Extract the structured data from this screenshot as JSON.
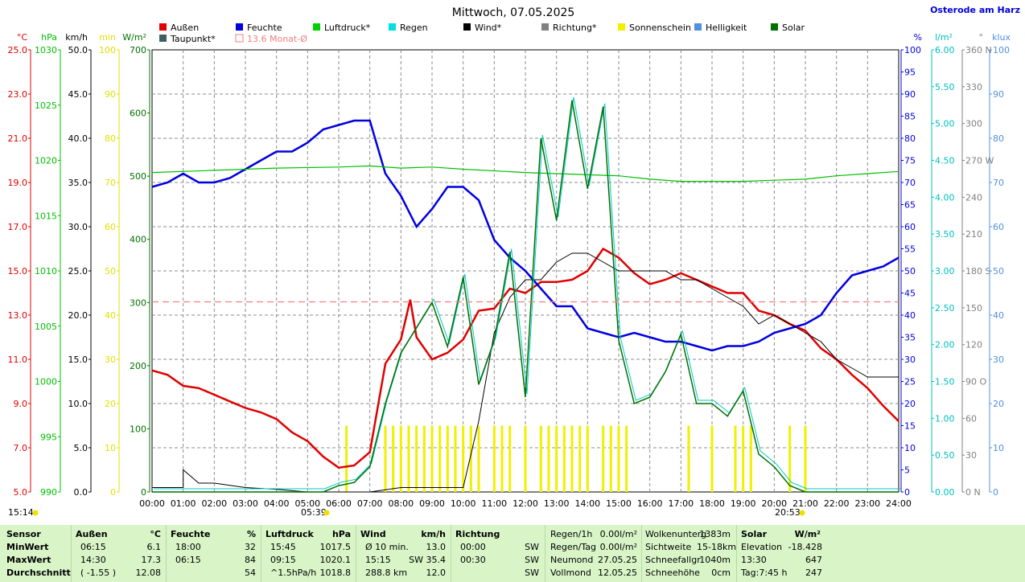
{
  "title": "Mittwoch, 07.05.2025",
  "station": "Osterode am Harz",
  "legend": [
    {
      "label": "Außen",
      "color": "#e00000"
    },
    {
      "label": "Feuchte",
      "color": "#0000e0"
    },
    {
      "label": "Luftdruck*",
      "color": "#00d000"
    },
    {
      "label": "Regen",
      "color": "#00e0e0"
    },
    {
      "label": "Wind*",
      "color": "#000000"
    },
    {
      "label": "Richtung*",
      "color": "#808080"
    },
    {
      "label": "Sonnenschein",
      "color": "#f0f000"
    },
    {
      "label": "Helligkeit",
      "color": "#5090e0"
    },
    {
      "label": "Solar",
      "color": "#007000"
    },
    {
      "label": "Taupunkt*",
      "color": "#406060"
    },
    {
      "label": "13.6 Monat-Ø",
      "color": "#f08080"
    }
  ],
  "axes_left": [
    {
      "unit": "°C",
      "color": "#e00000",
      "ticks": [
        "25.0",
        "23.0",
        "21.0",
        "19.0",
        "17.0",
        "15.0",
        "13.0",
        "11.0",
        "9.0",
        "7.0",
        "5.0"
      ]
    },
    {
      "unit": "hPa",
      "color": "#00c000",
      "ticks": [
        "1030",
        "1025",
        "1020",
        "1015",
        "1010",
        "1005",
        "1000",
        "995",
        "990"
      ]
    },
    {
      "unit": "km/h",
      "color": "#000000",
      "ticks": [
        "50.0",
        "45.0",
        "40.0",
        "35.0",
        "30.0",
        "25.0",
        "20.0",
        "15.0",
        "10.0",
        "5.0",
        "0.0"
      ]
    },
    {
      "unit": "min",
      "color": "#e0e000",
      "ticks": [
        "100",
        "90",
        "80",
        "70",
        "60",
        "50",
        "40",
        "30",
        "20",
        "10",
        "0"
      ]
    },
    {
      "unit": "W/m²",
      "color": "#007000",
      "ticks": [
        "700",
        "600",
        "500",
        "400",
        "300",
        "200",
        "100",
        "0"
      ]
    }
  ],
  "axes_right": [
    {
      "unit": "%",
      "color": "#0000e0",
      "ticks": [
        "100",
        "95",
        "90",
        "85",
        "80",
        "75",
        "70",
        "65",
        "60",
        "55",
        "50",
        "45",
        "40",
        "35",
        "30",
        "25",
        "20",
        "15",
        "10",
        "5",
        "0"
      ]
    },
    {
      "unit": "l/m²",
      "color": "#00c0c0",
      "ticks": [
        "6.00",
        "5.50",
        "5.00",
        "4.50",
        "4.00",
        "3.50",
        "3.00",
        "2.50",
        "2.00",
        "1.50",
        "1.00",
        "0.50",
        "0.00"
      ]
    },
    {
      "unit": "°",
      "color": "#808080",
      "ticks": [
        "360 N",
        "330",
        "300",
        "270 W",
        "240",
        "210",
        "180 S",
        "150",
        "120",
        "90 O",
        "60",
        "30",
        "0 N"
      ]
    },
    {
      "unit": "klux",
      "color": "#5090e0",
      "ticks": [
        "100",
        "90",
        "80",
        "70",
        "60",
        "50",
        "40",
        "30",
        "20",
        "10",
        "0"
      ]
    }
  ],
  "x_ticks": [
    "00:00",
    "01:00",
    "02:00",
    "03:00",
    "04:00",
    "05:00",
    "06:00",
    "07:00",
    "08:00",
    "09:00",
    "10:00",
    "11:00",
    "12:00",
    "13:00",
    "14:00",
    "15:00",
    "16:00",
    "17:00",
    "18:00",
    "19:00",
    "20:00",
    "21:00",
    "22:00",
    "23:00",
    "24:00"
  ],
  "time_marks": {
    "now": "15:14",
    "sunrise": "05:39",
    "sunset": "20:53"
  },
  "chart_data": {
    "type": "line",
    "title": "Mittwoch, 07.05.2025",
    "x_unit": "hour of day",
    "xlim": [
      0,
      24
    ],
    "series": [
      {
        "name": "Außen",
        "unit": "°C",
        "ylim": [
          5,
          25
        ],
        "points": [
          [
            0,
            10.5
          ],
          [
            0.5,
            10.3
          ],
          [
            1,
            9.8
          ],
          [
            1.5,
            9.7
          ],
          [
            2,
            9.4
          ],
          [
            2.5,
            9.1
          ],
          [
            3,
            8.8
          ],
          [
            3.5,
            8.6
          ],
          [
            4,
            8.3
          ],
          [
            4.5,
            7.7
          ],
          [
            5,
            7.3
          ],
          [
            5.5,
            6.6
          ],
          [
            6,
            6.1
          ],
          [
            6.5,
            6.2
          ],
          [
            7,
            6.8
          ],
          [
            7.5,
            10.8
          ],
          [
            8,
            11.9
          ],
          [
            8.3,
            13.7
          ],
          [
            8.5,
            12.0
          ],
          [
            9,
            11.0
          ],
          [
            9.5,
            11.3
          ],
          [
            10,
            11.9
          ],
          [
            10.5,
            13.2
          ],
          [
            11,
            13.3
          ],
          [
            11.5,
            14.2
          ],
          [
            12,
            14.0
          ],
          [
            12.5,
            14.5
          ],
          [
            13,
            14.5
          ],
          [
            13.5,
            14.6
          ],
          [
            14,
            15.0
          ],
          [
            14.5,
            16.0
          ],
          [
            15,
            15.6
          ],
          [
            15.5,
            14.9
          ],
          [
            16,
            14.4
          ],
          [
            16.5,
            14.6
          ],
          [
            17,
            14.9
          ],
          [
            17.5,
            14.6
          ],
          [
            18,
            14.3
          ],
          [
            18.5,
            14.0
          ],
          [
            19,
            14.0
          ],
          [
            19.5,
            13.2
          ],
          [
            20,
            13.0
          ],
          [
            20.5,
            12.6
          ],
          [
            21,
            12.3
          ],
          [
            21.5,
            11.5
          ],
          [
            22,
            11.0
          ],
          [
            22.5,
            10.3
          ],
          [
            23,
            9.7
          ],
          [
            23.5,
            8.9
          ],
          [
            24,
            8.2
          ]
        ]
      },
      {
        "name": "Feuchte",
        "unit": "%",
        "ylim": [
          0,
          100
        ],
        "points": [
          [
            0,
            69
          ],
          [
            0.5,
            70
          ],
          [
            1,
            72
          ],
          [
            1.5,
            70
          ],
          [
            2,
            70
          ],
          [
            2.5,
            71
          ],
          [
            3,
            73
          ],
          [
            3.5,
            75
          ],
          [
            4,
            77
          ],
          [
            4.5,
            77
          ],
          [
            5,
            79
          ],
          [
            5.5,
            82
          ],
          [
            6,
            83
          ],
          [
            6.5,
            84
          ],
          [
            7,
            84
          ],
          [
            7.5,
            72
          ],
          [
            8,
            67
          ],
          [
            8.5,
            60
          ],
          [
            9,
            64
          ],
          [
            9.5,
            69
          ],
          [
            10,
            69
          ],
          [
            10.5,
            66
          ],
          [
            11,
            57
          ],
          [
            11.5,
            53
          ],
          [
            12,
            50
          ],
          [
            12.5,
            46
          ],
          [
            13,
            42
          ],
          [
            13.5,
            42
          ],
          [
            14,
            37
          ],
          [
            14.5,
            36
          ],
          [
            15,
            35
          ],
          [
            15.5,
            36
          ],
          [
            16,
            35
          ],
          [
            16.5,
            34
          ],
          [
            17,
            34
          ],
          [
            17.5,
            33
          ],
          [
            18,
            32
          ],
          [
            18.5,
            33
          ],
          [
            19,
            33
          ],
          [
            19.5,
            34
          ],
          [
            20,
            36
          ],
          [
            20.5,
            37
          ],
          [
            21,
            38
          ],
          [
            21.5,
            40
          ],
          [
            22,
            45
          ],
          [
            22.5,
            49
          ],
          [
            23,
            50
          ],
          [
            23.5,
            51
          ],
          [
            24,
            53
          ]
        ]
      },
      {
        "name": "Luftdruck*",
        "unit": "hPa",
        "ylim": [
          990,
          1030
        ],
        "points": [
          [
            0,
            1018.9
          ],
          [
            2,
            1019.1
          ],
          [
            4,
            1019.3
          ],
          [
            6,
            1019.4
          ],
          [
            7,
            1019.5
          ],
          [
            8,
            1019.3
          ],
          [
            9,
            1019.4
          ],
          [
            10,
            1019.2
          ],
          [
            12,
            1018.9
          ],
          [
            14,
            1018.7
          ],
          [
            15,
            1018.6
          ],
          [
            16,
            1018.3
          ],
          [
            17,
            1018.1
          ],
          [
            19,
            1018.1
          ],
          [
            20,
            1018.2
          ],
          [
            21,
            1018.3
          ],
          [
            22,
            1018.6
          ],
          [
            23,
            1018.8
          ],
          [
            24,
            1019.0
          ]
        ]
      },
      {
        "name": "Wind*",
        "unit": "km/h",
        "ylim": [
          0,
          50
        ],
        "points": [
          [
            0,
            0.5
          ],
          [
            1,
            0.5
          ],
          [
            1,
            2.5
          ],
          [
            1.5,
            1.0
          ],
          [
            2,
            1.0
          ],
          [
            3,
            0.5
          ],
          [
            4,
            0.3
          ],
          [
            5,
            0
          ],
          [
            6,
            0
          ],
          [
            7,
            0
          ],
          [
            8,
            0.5
          ],
          [
            9,
            0.5
          ],
          [
            10,
            0.5
          ],
          [
            10.5,
            8
          ],
          [
            11,
            18
          ],
          [
            11.5,
            22
          ],
          [
            12,
            24
          ],
          [
            12.5,
            24
          ],
          [
            13,
            26
          ],
          [
            13.5,
            27
          ],
          [
            14,
            27
          ],
          [
            14.5,
            26
          ],
          [
            15,
            25
          ],
          [
            15.5,
            25
          ],
          [
            16,
            25
          ],
          [
            16.5,
            25
          ],
          [
            17,
            24
          ],
          [
            17.5,
            24
          ],
          [
            18,
            23
          ],
          [
            18.5,
            22
          ],
          [
            19,
            21
          ],
          [
            19.5,
            19
          ],
          [
            20,
            20
          ],
          [
            20.5,
            19
          ],
          [
            21,
            18
          ],
          [
            21.5,
            17
          ],
          [
            22,
            15
          ],
          [
            22.5,
            14
          ],
          [
            23,
            13
          ],
          [
            23.5,
            13
          ],
          [
            24,
            13
          ]
        ]
      },
      {
        "name": "Solar",
        "unit": "W/m²",
        "ylim": [
          0,
          700
        ],
        "points": [
          [
            0,
            0
          ],
          [
            5.5,
            0
          ],
          [
            6,
            10
          ],
          [
            6.5,
            15
          ],
          [
            7,
            40
          ],
          [
            7.5,
            140
          ],
          [
            8,
            220
          ],
          [
            8.5,
            260
          ],
          [
            9,
            300
          ],
          [
            9.5,
            230
          ],
          [
            10,
            340
          ],
          [
            10.5,
            170
          ],
          [
            11,
            240
          ],
          [
            11.5,
            380
          ],
          [
            12,
            150
          ],
          [
            12.5,
            560
          ],
          [
            13,
            430
          ],
          [
            13.5,
            620
          ],
          [
            14,
            480
          ],
          [
            14.5,
            610
          ],
          [
            15,
            240
          ],
          [
            15.5,
            140
          ],
          [
            16,
            150
          ],
          [
            16.5,
            190
          ],
          [
            17,
            250
          ],
          [
            17.5,
            140
          ],
          [
            18,
            140
          ],
          [
            18.5,
            120
          ],
          [
            19,
            160
          ],
          [
            19.5,
            60
          ],
          [
            20,
            40
          ],
          [
            20.5,
            10
          ],
          [
            21,
            0
          ],
          [
            24,
            0
          ]
        ]
      },
      {
        "name": "13.6 Monat-Ø",
        "unit": "°C",
        "ylim": [
          5,
          25
        ],
        "points": [
          [
            0,
            13.6
          ],
          [
            24,
            13.6
          ]
        ]
      }
    ]
  },
  "table": {
    "headers": {
      "sensor": "Sensor",
      "aussen": "Außen",
      "aussen_unit": "°C",
      "feuchte": "Feuchte",
      "feuchte_unit": "%",
      "luftdruck": "Luftdruck",
      "luftdruck_unit": "hPa",
      "wind": "Wind",
      "wind_unit": "km/h",
      "richtung": "Richtung",
      "solar": "Solar",
      "solar_unit": "W/m²"
    },
    "rows": [
      {
        "label": "MinWert",
        "aussen_t": "06:15",
        "aussen_v": "6.1",
        "feuchte_t": "18:00",
        "feuchte_v": "32",
        "druck_t": "15:45",
        "druck_v": "1017.5",
        "wind_t": "Ø 10 min.",
        "wind_v": "13.0",
        "richtung_t": "00:00",
        "richtung_v": "SW"
      },
      {
        "label": "MaxWert",
        "aussen_t": "14:30",
        "aussen_v": "17.3",
        "feuchte_t": "06:15",
        "feuchte_v": "84",
        "druck_t": "09:15",
        "druck_v": "1020.1",
        "wind_t": "15:15",
        "wind_v": "SW 35.4",
        "richtung_t": "00:30",
        "richtung_v": "SW"
      },
      {
        "label": "Durchschnitt",
        "aussen_t": "( -1.55 )",
        "aussen_v": "12.08",
        "feuchte_t": "",
        "feuchte_v": "54",
        "druck_t": "^1.5hPa/h",
        "druck_v": "1018.8",
        "wind_t": "288.8 km",
        "wind_v": "12.0",
        "richtung_t": "",
        "richtung_v": "SW"
      }
    ],
    "extra": [
      {
        "a": "Regen/1h",
        "b": "0.00l/m²",
        "c": "Wolkenunterg",
        "d": "1383m"
      },
      {
        "a": "Regen/Tag",
        "b": "0.00l/m²",
        "c": "Sichtweite",
        "d": "15-18km"
      },
      {
        "a": "Neumond",
        "b": "27.05.25",
        "c": "Schneefallgr",
        "d": "1040m"
      },
      {
        "a": "Vollmond",
        "b": "12.05.25",
        "c": "Schneehöhe",
        "d": "0cm"
      }
    ],
    "solar_rows": [
      {
        "a": "Elevation",
        "b": "-18.428"
      },
      {
        "a": "13:30",
        "b": "647"
      },
      {
        "a": "Tag:7:45 h",
        "b": "247"
      }
    ]
  }
}
